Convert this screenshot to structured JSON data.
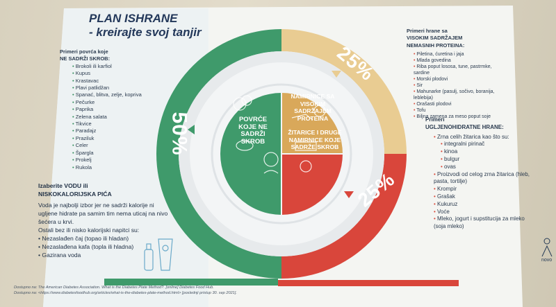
{
  "title": {
    "line1": "PLAN ISHRANE",
    "line2": "- kreirajte svoj tanjir"
  },
  "left_list": {
    "title_line1": "Primeri povrća koje",
    "title_line2": "NE SADRŽI SKROB:",
    "items": [
      "Brokoli ili karfiol",
      "Kupus",
      "Krastavac",
      "Plavi patlidžan",
      "Spanać, blitva, zelje, kopriva",
      "Pečurke",
      "Paprika",
      "Zelena salata",
      "Tikvice",
      "Paradajz",
      "Praziluk",
      "Celer",
      "Šparglа",
      "Prokelj",
      "Rukola"
    ]
  },
  "right_top_list": {
    "title_line1": "Primeri hrane sa",
    "title_line2": "VISOKIM SADRŽAJEM",
    "title_line3": "NEMASNIH PROTEINA:",
    "items": [
      "Piletina, ćuretina i jaja",
      "Mlada govedina",
      "Riba poput lososa, tune, pastrmke, sardine",
      "Morski plodovi",
      "Sir",
      "Mahunarke (pasulj, sočivo, boranija, leblebija)",
      "Orašasti plodovi",
      "Tofu",
      "Biljna zamena za meso poput soje"
    ]
  },
  "right_bottom_list": {
    "title_line1": "Primeri",
    "title_line2": "UGLJENOHIDRATNE HRANE:",
    "items": [
      "Zrna celih žitarica kao što su:",
      "integralni pirinač",
      "kinoa",
      "bulgur",
      "ovas",
      "Proizvodi od celog zrna žitarica (hleb, pasta, tortilje)",
      "Krompir",
      "Grašak",
      "Kukuruz",
      "Voće",
      "Mleko, jogurt i supstitucija za mleko (soja mleko)"
    ]
  },
  "water_box": {
    "title_line1": "Izaberite VODU ili",
    "title_line2": "NISKOKALORIJSKA PIĆA",
    "text": "Voda je najbolji izbor jer ne sadrži kalorije ni ugljene hidrate pa samim tim nema uticaj na nivo šećera u krvi.",
    "subtitle": "Ostali bez ili nisko kalorijski napitci su:",
    "items": [
      "Nezaslađen čaj (topao ili hladan)",
      "Nezaslađena kafa (topla ili hladna)",
      "Gazirana voda"
    ]
  },
  "plate": {
    "pct_left": "50%",
    "pct_top_right": "25%",
    "pct_bottom_right": "25%",
    "seg_vegetables": "POVRĆE KOJE NE SADRŽI SKROB",
    "seg_protein": "NAMIRNICE SA VISOKIM SADRŽAJEM PROTEINA",
    "seg_carbs": "ŽITARICE I DRUGE NAMIRNICE KOJE SADRŽE SKROB",
    "colors": {
      "green": "#3f9a6b",
      "tan": "#e9cc92",
      "red": "#d9463b"
    }
  },
  "footer": {
    "line1": "Dostupno na: The American Diabetes Association. What is the Diabetes Plate Method?. [online] Diabetes Food Hub.",
    "line2": "Dostupno na: <https://www.diabetesfoodhub.org/articles/what-is-the-diabetes-plate-method.html> [poslednji pristup 30. sep 2021]."
  },
  "logo": "novo"
}
